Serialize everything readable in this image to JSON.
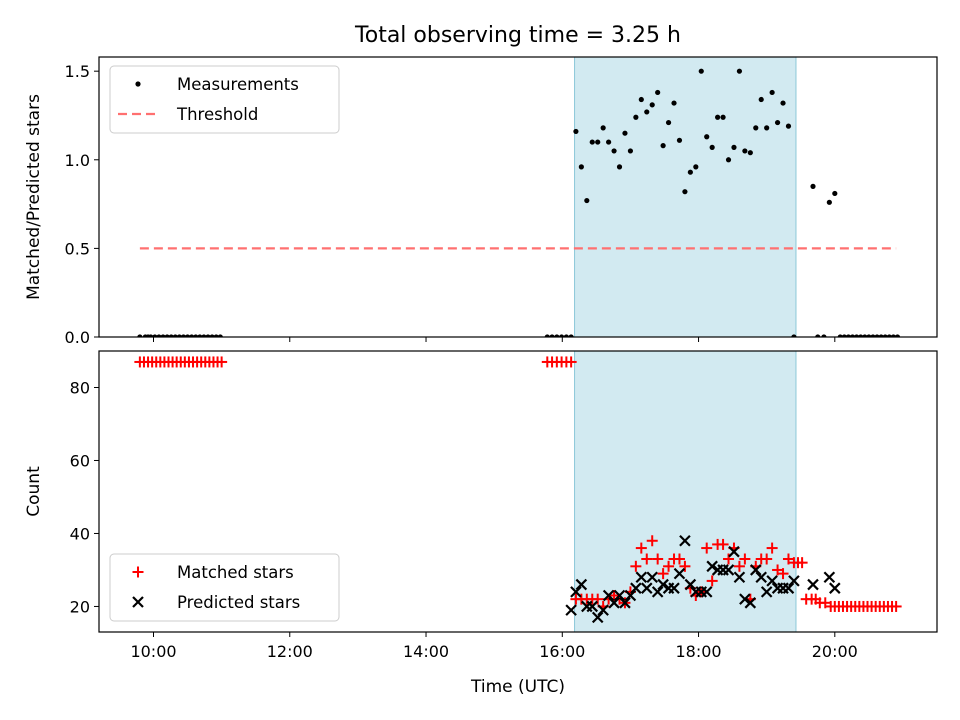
{
  "figure": {
    "title": "Total observing time = 3.25 h",
    "xlabel": "Time (UTC)",
    "xticks": [
      {
        "value": 10,
        "label": "10:00"
      },
      {
        "value": 12,
        "label": "12:00"
      },
      {
        "value": 14,
        "label": "14:00"
      },
      {
        "value": 16,
        "label": "16:00"
      },
      {
        "value": 18,
        "label": "18:00"
      },
      {
        "value": 20,
        "label": "20:00"
      }
    ],
    "xlim": [
      9.2,
      21.5
    ],
    "shaded_span": [
      16.18,
      19.43
    ],
    "shade_color": "#add8e6"
  },
  "chart_data": [
    {
      "type": "scatter",
      "ylabel": "Matched/Predicted stars",
      "ylim": [
        0,
        1.58
      ],
      "yticks": [
        {
          "value": 0,
          "label": "0.0"
        },
        {
          "value": 0.5,
          "label": "0.5"
        },
        {
          "value": 1.0,
          "label": "1.0"
        },
        {
          "value": 1.5,
          "label": "1.5"
        }
      ],
      "legend_position": "top-left",
      "series": [
        {
          "name": "Measurements",
          "marker": "dot",
          "color": "#000000",
          "x": [
            9.8,
            9.88,
            9.92,
            9.96,
            10.02,
            10.08,
            10.14,
            10.2,
            10.26,
            10.32,
            10.38,
            10.44,
            10.5,
            10.56,
            10.62,
            10.68,
            10.74,
            10.8,
            10.86,
            10.92,
            10.98,
            15.78,
            15.85,
            15.92,
            15.99,
            16.06,
            16.13,
            16.2,
            16.28,
            16.36,
            16.44,
            16.52,
            16.6,
            16.68,
            16.76,
            16.84,
            16.92,
            17.0,
            17.08,
            17.16,
            17.24,
            17.32,
            17.4,
            17.48,
            17.56,
            17.64,
            17.72,
            17.8,
            17.88,
            17.96,
            18.04,
            18.12,
            18.2,
            18.28,
            18.36,
            18.44,
            18.52,
            18.6,
            18.68,
            18.76,
            18.84,
            18.92,
            19.0,
            19.08,
            19.16,
            19.24,
            19.32,
            19.4,
            19.68,
            19.75,
            19.84,
            19.92,
            20.0,
            20.08,
            20.14,
            20.2,
            20.26,
            20.32,
            20.38,
            20.44,
            20.5,
            20.56,
            20.62,
            20.68,
            20.74,
            20.8,
            20.86,
            20.92
          ],
          "y": [
            0,
            0,
            0,
            0,
            0,
            0,
            0,
            0,
            0,
            0,
            0,
            0,
            0,
            0,
            0,
            0,
            0,
            0,
            0,
            0,
            0,
            0,
            0,
            0,
            0,
            0,
            0,
            1.16,
            0.96,
            0.77,
            1.1,
            1.1,
            1.18,
            1.1,
            1.05,
            0.96,
            1.15,
            1.05,
            1.24,
            1.34,
            1.27,
            1.31,
            1.38,
            1.08,
            1.21,
            1.32,
            1.11,
            0.82,
            0.93,
            0.96,
            1.5,
            1.13,
            1.07,
            1.24,
            1.24,
            1.0,
            1.07,
            1.5,
            1.05,
            1.04,
            1.18,
            1.34,
            1.18,
            1.38,
            1.21,
            1.32,
            1.19,
            0,
            0.85,
            0,
            0,
            0.76,
            0.81,
            0,
            0,
            0,
            0,
            0,
            0,
            0,
            0,
            0,
            0,
            0,
            0,
            0,
            0,
            0
          ]
        },
        {
          "name": "Threshold",
          "marker": "dashed-line",
          "color": "#ff7070",
          "x": [
            9.8,
            20.9
          ],
          "y": [
            0.5,
            0.5
          ]
        }
      ]
    },
    {
      "type": "scatter",
      "ylabel": "Count",
      "ylim": [
        13,
        90
      ],
      "yticks": [
        {
          "value": 20,
          "label": "20"
        },
        {
          "value": 40,
          "label": "40"
        },
        {
          "value": 60,
          "label": "60"
        },
        {
          "value": 80,
          "label": "80"
        }
      ],
      "legend_position": "bottom-left",
      "series": [
        {
          "name": "Matched stars",
          "marker": "plus",
          "color": "#ff0000",
          "x": [
            9.8,
            9.86,
            9.92,
            9.98,
            10.04,
            10.1,
            10.16,
            10.22,
            10.28,
            10.34,
            10.4,
            10.46,
            10.52,
            10.58,
            10.64,
            10.7,
            10.76,
            10.82,
            10.88,
            10.94,
            11.0,
            15.78,
            15.85,
            15.92,
            15.99,
            16.06,
            16.13,
            16.2,
            16.28,
            16.36,
            16.44,
            16.52,
            16.6,
            16.68,
            16.76,
            16.84,
            16.92,
            17.0,
            17.08,
            17.16,
            17.24,
            17.32,
            17.4,
            17.48,
            17.56,
            17.64,
            17.72,
            17.8,
            17.88,
            17.96,
            18.04,
            18.12,
            18.2,
            18.28,
            18.36,
            18.44,
            18.52,
            18.6,
            18.68,
            18.76,
            18.84,
            18.92,
            19.0,
            19.08,
            19.16,
            19.24,
            19.32,
            19.4,
            19.46,
            19.52,
            19.58,
            19.66,
            19.72,
            19.78,
            19.86,
            19.94,
            20.0,
            20.06,
            20.12,
            20.18,
            20.24,
            20.3,
            20.36,
            20.42,
            20.48,
            20.54,
            20.6,
            20.66,
            20.72,
            20.78,
            20.84,
            20.9
          ],
          "y": [
            87,
            87,
            87,
            87,
            87,
            87,
            87,
            87,
            87,
            87,
            87,
            87,
            87,
            87,
            87,
            87,
            87,
            87,
            87,
            87,
            87,
            87,
            87,
            87,
            87,
            87,
            87,
            22,
            22,
            22,
            22,
            22,
            20,
            22,
            23,
            22,
            21,
            24,
            31,
            36,
            33,
            38,
            33,
            29,
            31,
            33,
            33,
            31,
            25,
            23,
            24,
            36,
            27,
            37,
            37,
            33,
            36,
            31,
            33,
            22,
            31,
            33,
            33,
            36,
            30,
            29,
            33,
            32,
            32,
            32,
            22,
            22,
            22,
            21,
            21,
            20,
            20,
            20,
            20,
            20,
            20,
            20,
            20,
            20,
            20,
            20,
            20,
            20,
            20,
            20,
            20,
            20
          ]
        },
        {
          "name": "Predicted stars",
          "marker": "x",
          "color": "#000000",
          "x": [
            16.13,
            16.2,
            16.28,
            16.36,
            16.44,
            16.52,
            16.6,
            16.68,
            16.76,
            16.84,
            16.92,
            17.0,
            17.08,
            17.16,
            17.24,
            17.32,
            17.4,
            17.48,
            17.56,
            17.64,
            17.72,
            17.8,
            17.88,
            17.96,
            18.04,
            18.12,
            18.2,
            18.28,
            18.36,
            18.44,
            18.52,
            18.6,
            18.68,
            18.76,
            18.84,
            18.92,
            19.0,
            19.08,
            19.16,
            19.24,
            19.32,
            19.4,
            19.68,
            19.92,
            20.0
          ],
          "y": [
            19,
            24,
            26,
            20,
            20,
            17,
            19,
            23,
            21,
            23,
            21,
            23,
            25,
            28,
            25,
            28,
            24,
            26,
            25,
            25,
            29,
            38,
            26,
            24,
            24,
            24,
            31,
            30,
            30,
            30,
            35,
            28,
            22,
            21,
            30,
            28,
            24,
            27,
            25,
            25,
            25,
            27,
            26,
            28,
            25
          ]
        }
      ]
    }
  ]
}
